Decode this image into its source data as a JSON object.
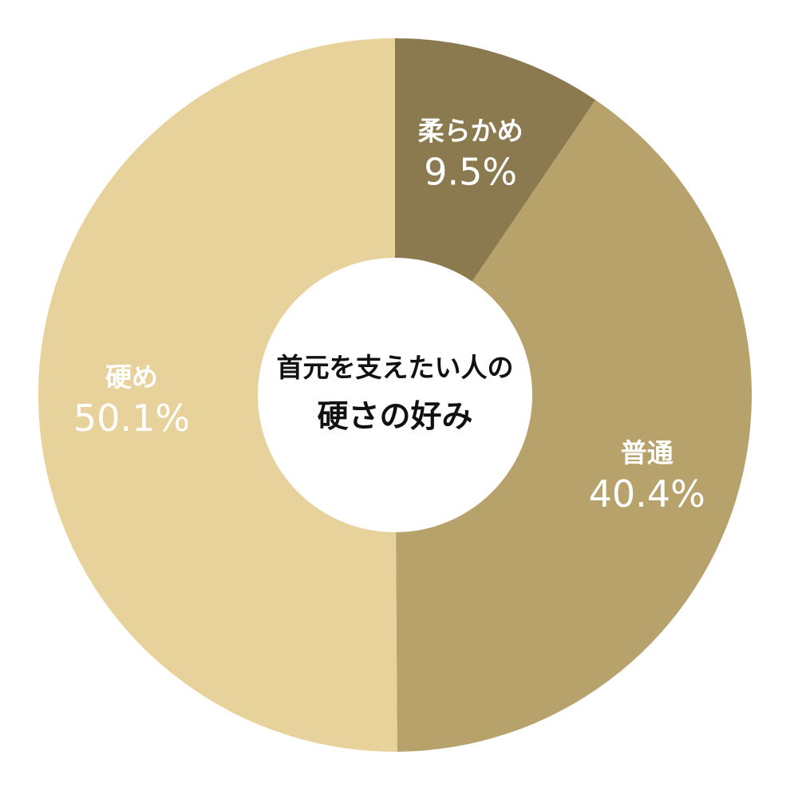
{
  "chart_data": {
    "type": "pie",
    "variant": "donut",
    "title_lines": [
      "首元を支えたい人の",
      "硬さの好み"
    ],
    "slices": [
      {
        "name": "柔らかめ",
        "value": 9.5,
        "value_label": "9.5%",
        "color": "#8b7a50"
      },
      {
        "name": "普通",
        "value": 40.4,
        "value_label": "40.4%",
        "color": "#b7a26b"
      },
      {
        "name": "硬め",
        "value": 50.1,
        "value_label": "50.1%",
        "color": "#e8d29c"
      }
    ],
    "start": "top",
    "direction": "clockwise",
    "legend": "none",
    "center_color": "#ffffff"
  }
}
